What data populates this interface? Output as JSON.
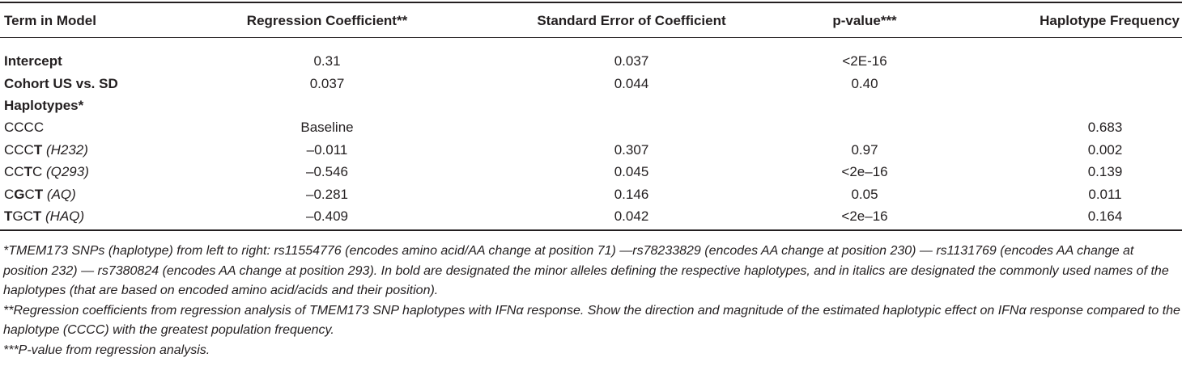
{
  "table": {
    "headers": [
      "Term in Model",
      "Regression Coefficient**",
      "Standard Error of Coefficient",
      "p-value***",
      "Haplotype Frequency"
    ],
    "rows": [
      {
        "term": [
          {
            "text": "Intercept",
            "bold": true
          }
        ],
        "coef": "0.31",
        "se": "0.037",
        "p": "<2E-16"
      },
      {
        "term": [
          {
            "text": "Cohort US vs. SD",
            "bold": true
          }
        ],
        "coef": "0.037",
        "se": "0.044",
        "p": "0.40"
      },
      {
        "term": [
          {
            "text": "Haplotypes*",
            "bold": true
          }
        ]
      },
      {
        "term": [
          {
            "text": "CCCC"
          }
        ],
        "coef": "Baseline",
        "freq": "0.683"
      },
      {
        "term": [
          {
            "text": "CCC"
          },
          {
            "text": "T",
            "bold": true
          },
          {
            "text": " (H232)",
            "italic": true
          }
        ],
        "coef": "–0.011",
        "se": "0.307",
        "p": "0.97",
        "freq": "0.002"
      },
      {
        "term": [
          {
            "text": "CC"
          },
          {
            "text": "T",
            "bold": true
          },
          {
            "text": "C"
          },
          {
            "text": " (Q293)",
            "italic": true
          }
        ],
        "coef": "–0.546",
        "se": "0.045",
        "p": "<2e–16",
        "freq": "0.139"
      },
      {
        "term": [
          {
            "text": "C"
          },
          {
            "text": "G",
            "bold": true
          },
          {
            "text": "C"
          },
          {
            "text": "T",
            "bold": true
          },
          {
            "text": " (AQ)",
            "italic": true
          }
        ],
        "coef": "–0.281",
        "se": "0.146",
        "p": "0.05",
        "freq": "0.011"
      },
      {
        "term": [
          {
            "text": "T",
            "bold": true
          },
          {
            "text": "GC"
          },
          {
            "text": "T",
            "bold": true
          },
          {
            "text": " (HAQ)",
            "italic": true
          }
        ],
        "coef": "–0.409",
        "se": "0.042",
        "p": "<2e–16",
        "freq": "0.164"
      }
    ]
  },
  "footnotes": [
    "*TMEM173 SNPs (haplotype) from left to right: rs11554776 (encodes amino acid/AA change at position 71) —rs78233829 (encodes AA change at position 230) — rs1131769 (encodes AA change at position 232) — rs7380824 (encodes AA change at position 293). In bold are designated the minor alleles defining the respective haplotypes, and in italics are designated the commonly used names of the haplotypes (that are based on encoded amino acid/acids and their position).",
    "**Regression coefficients from regression analysis of TMEM173 SNP haplotypes with IFNα response. Show the direction and magnitude of the estimated haplotypic effect on IFNα response compared to the haplotype (CCCC) with the greatest population frequency.",
    "***P-value from regression analysis."
  ]
}
